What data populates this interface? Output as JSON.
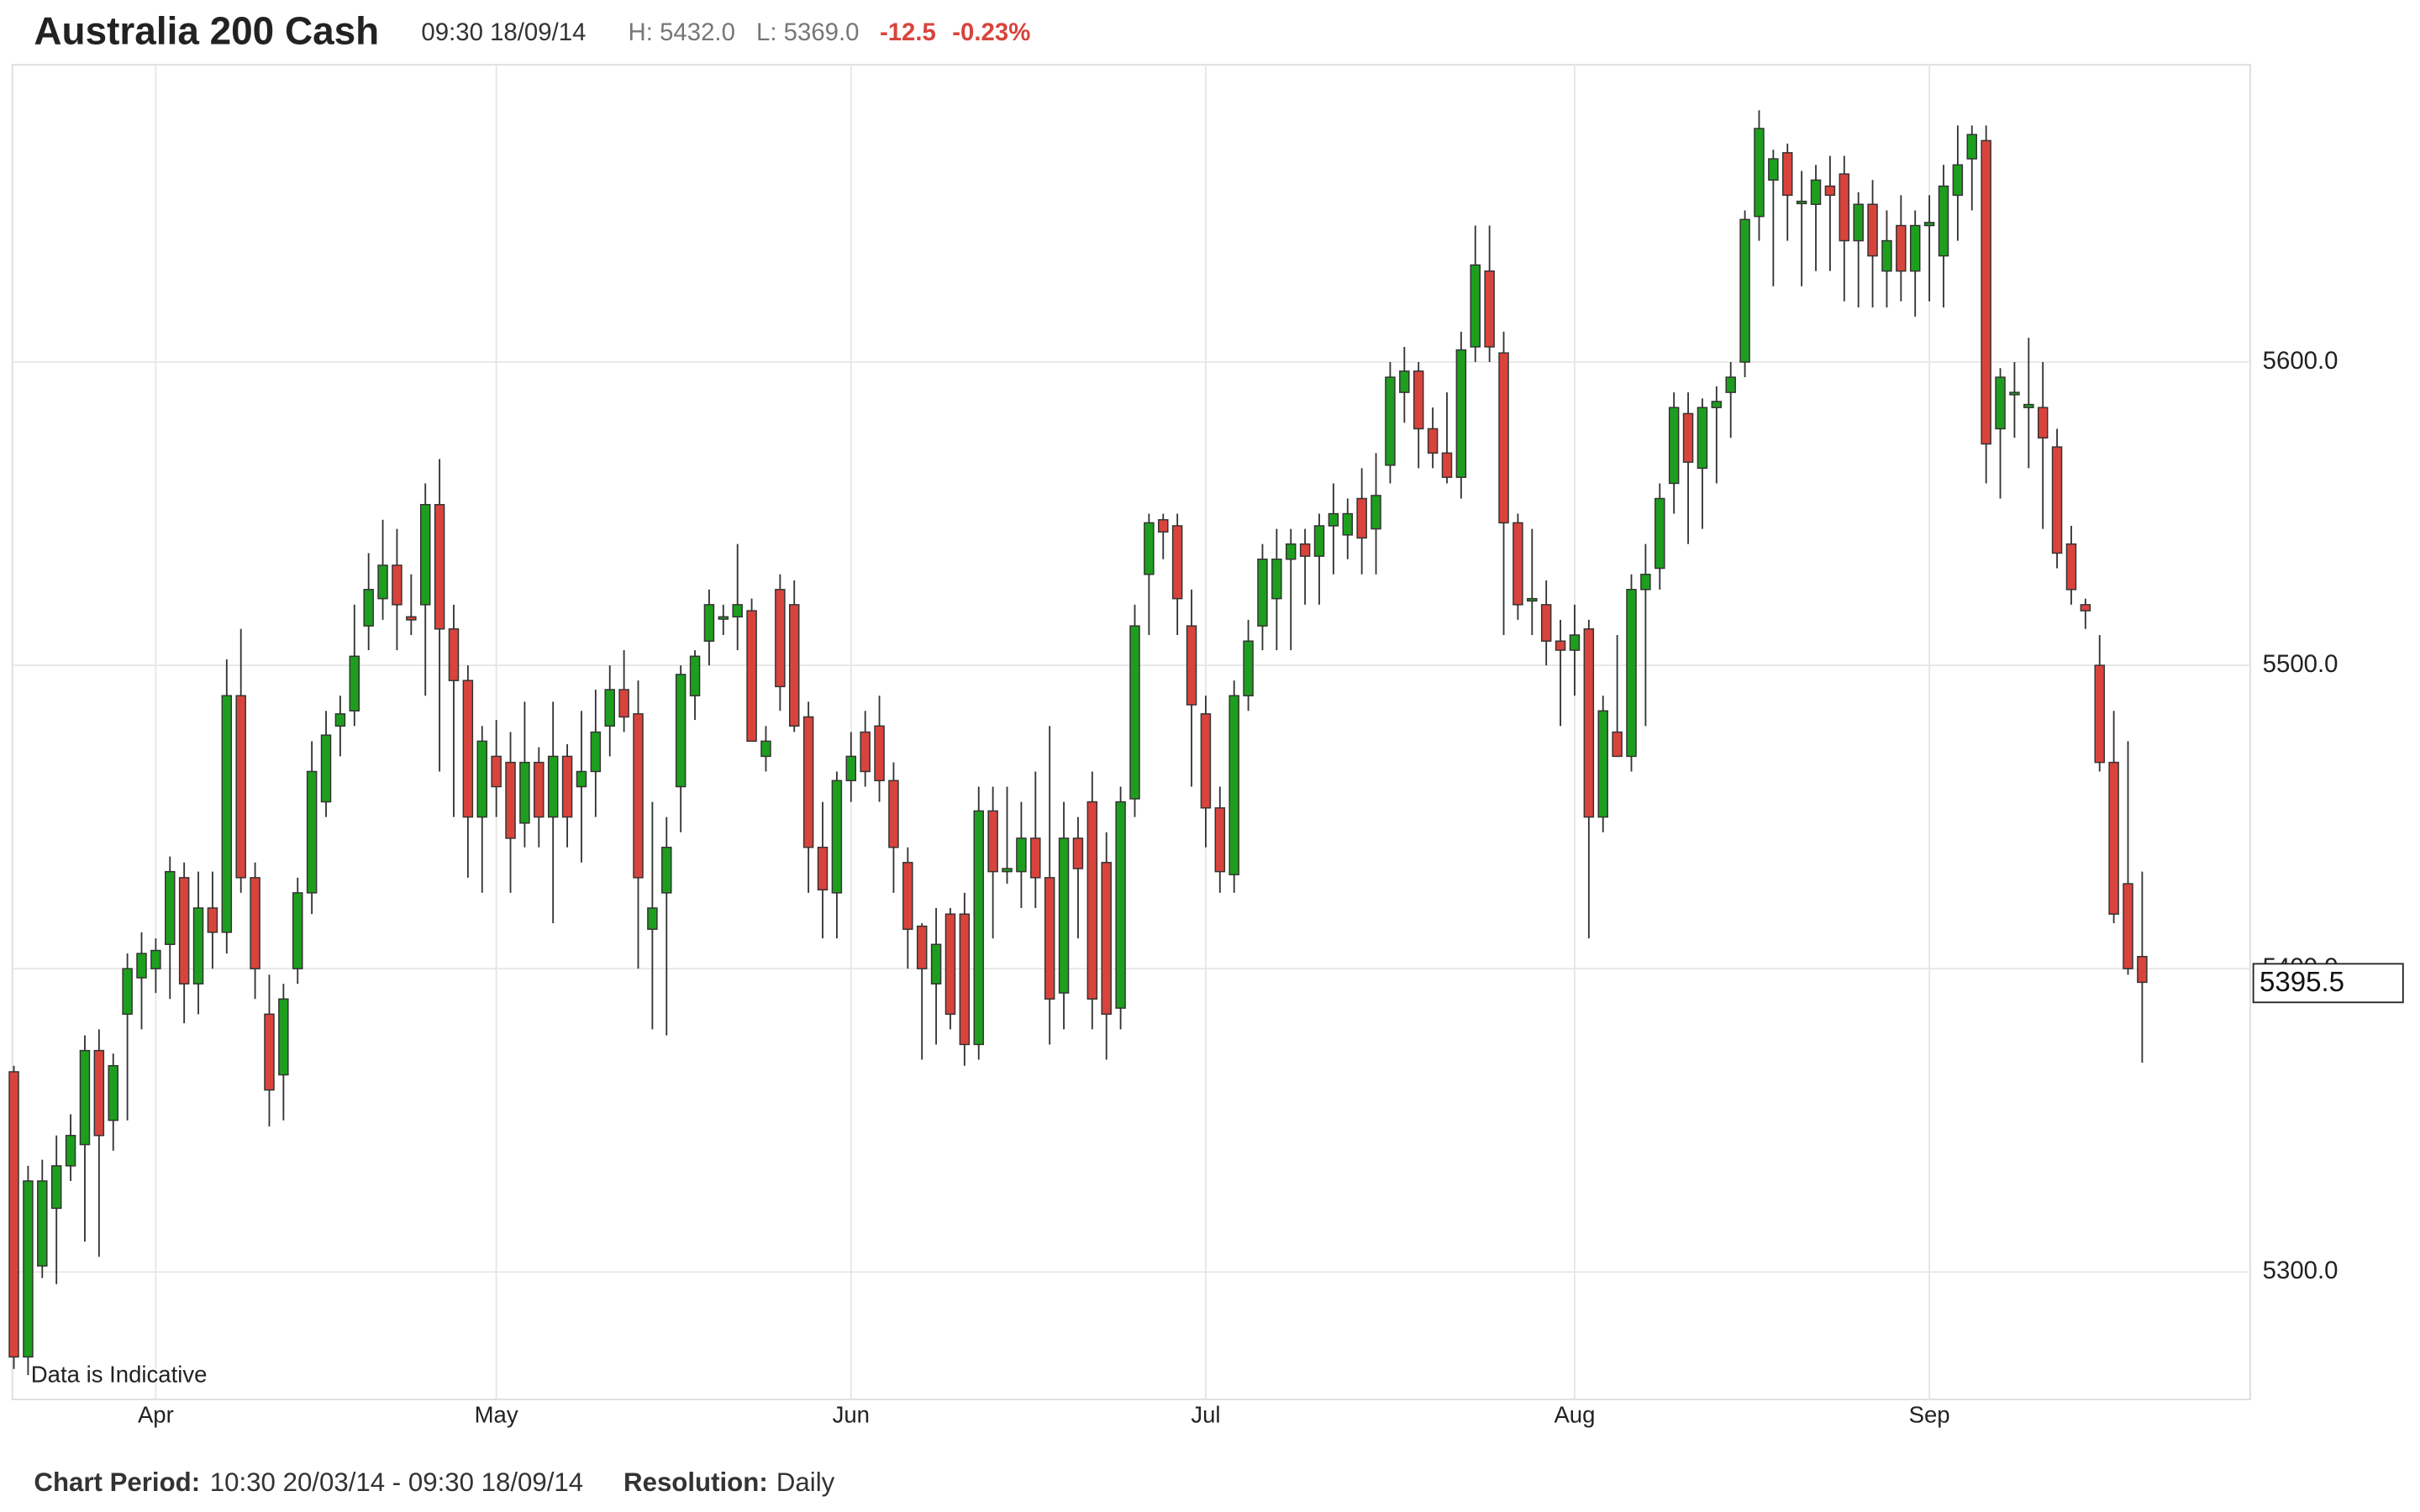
{
  "header": {
    "title": "Australia 200 Cash",
    "time": "09:30 18/09/14",
    "high": "H: 5432.0",
    "low": "L: 5369.0",
    "change": "-12.5",
    "change_pct": "-0.23%"
  },
  "footer": {
    "period_label": "Chart Period:",
    "period": "10:30 20/03/14 - 09:30 18/09/14",
    "resolution_label": "Resolution:",
    "resolution": "Daily"
  },
  "chart_data": {
    "type": "candlestick",
    "note": "Data is Indicative",
    "up_color": "#1e9e1e",
    "down_color": "#d8443c",
    "grid": true,
    "ylim": [
      5258,
      5698
    ],
    "yticks": [
      {
        "value": 5300,
        "label": "5300.0"
      },
      {
        "value": 5400,
        "label": "5400.0"
      },
      {
        "value": 5500,
        "label": "5500.0"
      },
      {
        "value": 5600,
        "label": "5600.0"
      }
    ],
    "last_price": 5395.5,
    "categories": [
      null,
      null,
      null,
      null,
      null,
      null,
      null,
      null,
      null,
      null,
      "Apr",
      null,
      null,
      null,
      null,
      null,
      null,
      null,
      null,
      null,
      null,
      null,
      null,
      null,
      null,
      null,
      null,
      null,
      null,
      null,
      null,
      null,
      null,
      null,
      "May",
      null,
      null,
      null,
      null,
      null,
      null,
      null,
      null,
      null,
      null,
      null,
      null,
      null,
      null,
      null,
      null,
      null,
      null,
      null,
      null,
      null,
      null,
      null,
      null,
      "Jun",
      null,
      null,
      null,
      null,
      null,
      null,
      null,
      null,
      null,
      null,
      null,
      null,
      null,
      null,
      null,
      null,
      null,
      null,
      null,
      null,
      null,
      null,
      null,
      null,
      "Jul",
      null,
      null,
      null,
      null,
      null,
      null,
      null,
      null,
      null,
      null,
      null,
      null,
      null,
      null,
      null,
      null,
      null,
      null,
      null,
      null,
      null,
      null,
      null,
      null,
      null,
      "Aug",
      null,
      null,
      null,
      null,
      null,
      null,
      null,
      null,
      null,
      null,
      null,
      null,
      null,
      null,
      null,
      null,
      null,
      null,
      null,
      null,
      null,
      null,
      null,
      null,
      "Sep",
      null,
      null,
      null,
      null,
      null,
      null,
      null,
      null,
      null,
      null,
      null,
      null,
      null,
      null,
      null
    ],
    "candles": [
      [
        5366,
        5368,
        5268,
        5272
      ],
      [
        5272,
        5335,
        5266,
        5330
      ],
      [
        5302,
        5337,
        5298,
        5330
      ],
      [
        5321,
        5345,
        5296,
        5335
      ],
      [
        5335,
        5352,
        5330,
        5345
      ],
      [
        5342,
        5378,
        5310,
        5373
      ],
      [
        5373,
        5380,
        5305,
        5345
      ],
      [
        5350,
        5372,
        5340,
        5368
      ],
      [
        5385,
        5405,
        5350,
        5400
      ],
      [
        5397,
        5412,
        5380,
        5405
      ],
      [
        5400,
        5410,
        5392,
        5406
      ],
      [
        5408,
        5437,
        5390,
        5432
      ],
      [
        5430,
        5435,
        5382,
        5395
      ],
      [
        5395,
        5432,
        5385,
        5420
      ],
      [
        5420,
        5432,
        5400,
        5412
      ],
      [
        5412,
        5502,
        5405,
        5490
      ],
      [
        5490,
        5512,
        5425,
        5430
      ],
      [
        5430,
        5435,
        5390,
        5400
      ],
      [
        5385,
        5398,
        5348,
        5360
      ],
      [
        5365,
        5395,
        5350,
        5390
      ],
      [
        5400,
        5430,
        5395,
        5425
      ],
      [
        5425,
        5475,
        5418,
        5465
      ],
      [
        5455,
        5485,
        5450,
        5477
      ],
      [
        5480,
        5490,
        5470,
        5484
      ],
      [
        5485,
        5520,
        5480,
        5503
      ],
      [
        5513,
        5537,
        5505,
        5525
      ],
      [
        5522,
        5548,
        5515,
        5533
      ],
      [
        5533,
        5545,
        5505,
        5520
      ],
      [
        5516,
        5530,
        5510,
        5515
      ],
      [
        5520,
        5560,
        5490,
        5553
      ],
      [
        5553,
        5568,
        5465,
        5512
      ],
      [
        5512,
        5520,
        5450,
        5495
      ],
      [
        5495,
        5500,
        5430,
        5450
      ],
      [
        5450,
        5480,
        5425,
        5475
      ],
      [
        5470,
        5482,
        5450,
        5460
      ],
      [
        5468,
        5478,
        5425,
        5443
      ],
      [
        5448,
        5488,
        5440,
        5468
      ],
      [
        5468,
        5473,
        5440,
        5450
      ],
      [
        5450,
        5488,
        5415,
        5470
      ],
      [
        5470,
        5474,
        5440,
        5450
      ],
      [
        5460,
        5485,
        5435,
        5465
      ],
      [
        5465,
        5492,
        5450,
        5478
      ],
      [
        5480,
        5500,
        5470,
        5492
      ],
      [
        5492,
        5505,
        5478,
        5483
      ],
      [
        5484,
        5495,
        5400,
        5430
      ],
      [
        5413,
        5455,
        5380,
        5420
      ],
      [
        5425,
        5450,
        5378,
        5440
      ],
      [
        5460,
        5500,
        5445,
        5497
      ],
      [
        5490,
        5505,
        5482,
        5503
      ],
      [
        5508,
        5525,
        5500,
        5520
      ],
      [
        5516,
        5520,
        5510,
        5516
      ],
      [
        5516,
        5540,
        5505,
        5520
      ],
      [
        5518,
        5522,
        5475,
        5475
      ],
      [
        5470,
        5480,
        5465,
        5475
      ],
      [
        5525,
        5530,
        5485,
        5493
      ],
      [
        5520,
        5528,
        5478,
        5480
      ],
      [
        5483,
        5488,
        5425,
        5440
      ],
      [
        5440,
        5455,
        5410,
        5426
      ],
      [
        5425,
        5465,
        5410,
        5462
      ],
      [
        5462,
        5478,
        5455,
        5470
      ],
      [
        5478,
        5485,
        5460,
        5465
      ],
      [
        5480,
        5490,
        5455,
        5462
      ],
      [
        5462,
        5468,
        5425,
        5440
      ],
      [
        5435,
        5440,
        5400,
        5413
      ],
      [
        5414,
        5415,
        5370,
        5400
      ],
      [
        5395,
        5420,
        5375,
        5408
      ],
      [
        5418,
        5420,
        5380,
        5385
      ],
      [
        5418,
        5425,
        5368,
        5375
      ],
      [
        5375,
        5460,
        5370,
        5452
      ],
      [
        5452,
        5460,
        5410,
        5432
      ],
      [
        5432,
        5460,
        5428,
        5433
      ],
      [
        5432,
        5455,
        5420,
        5443
      ],
      [
        5443,
        5465,
        5420,
        5430
      ],
      [
        5430,
        5480,
        5375,
        5390
      ],
      [
        5392,
        5455,
        5380,
        5443
      ],
      [
        5443,
        5450,
        5410,
        5433
      ],
      [
        5455,
        5465,
        5380,
        5390
      ],
      [
        5435,
        5445,
        5370,
        5385
      ],
      [
        5387,
        5460,
        5380,
        5455
      ],
      [
        5456,
        5520,
        5450,
        5513
      ],
      [
        5530,
        5550,
        5510,
        5547
      ],
      [
        5548,
        5550,
        5535,
        5544
      ],
      [
        5546,
        5550,
        5510,
        5522
      ],
      [
        5513,
        5525,
        5460,
        5487
      ],
      [
        5484,
        5490,
        5440,
        5453
      ],
      [
        5453,
        5460,
        5425,
        5432
      ],
      [
        5431,
        5495,
        5425,
        5490
      ],
      [
        5490,
        5515,
        5485,
        5508
      ],
      [
        5513,
        5540,
        5505,
        5535
      ],
      [
        5522,
        5545,
        5505,
        5535
      ],
      [
        5535,
        5545,
        5505,
        5540
      ],
      [
        5540,
        5545,
        5520,
        5536
      ],
      [
        5536,
        5550,
        5520,
        5546
      ],
      [
        5546,
        5560,
        5530,
        5550
      ],
      [
        5543,
        5555,
        5535,
        5550
      ],
      [
        5555,
        5565,
        5530,
        5542
      ],
      [
        5545,
        5570,
        5530,
        5556
      ],
      [
        5566,
        5600,
        5560,
        5595
      ],
      [
        5590,
        5605,
        5580,
        5597
      ],
      [
        5597,
        5600,
        5565,
        5578
      ],
      [
        5578,
        5585,
        5565,
        5570
      ],
      [
        5570,
        5590,
        5560,
        5562
      ],
      [
        5562,
        5610,
        5555,
        5604
      ],
      [
        5605,
        5645,
        5600,
        5632
      ],
      [
        5630,
        5645,
        5600,
        5605
      ],
      [
        5603,
        5610,
        5510,
        5547
      ],
      [
        5547,
        5550,
        5515,
        5520
      ],
      [
        5522,
        5545,
        5510,
        5522
      ],
      [
        5520,
        5528,
        5500,
        5508
      ],
      [
        5508,
        5515,
        5480,
        5505
      ],
      [
        5505,
        5520,
        5490,
        5510
      ],
      [
        5512,
        5515,
        5410,
        5450
      ],
      [
        5450,
        5490,
        5445,
        5485
      ],
      [
        5478,
        5510,
        5470,
        5470
      ],
      [
        5470,
        5530,
        5465,
        5525
      ],
      [
        5525,
        5540,
        5480,
        5530
      ],
      [
        5532,
        5560,
        5525,
        5555
      ],
      [
        5560,
        5590,
        5550,
        5585
      ],
      [
        5583,
        5590,
        5540,
        5567
      ],
      [
        5565,
        5588,
        5545,
        5585
      ],
      [
        5585,
        5592,
        5560,
        5587
      ],
      [
        5590,
        5600,
        5575,
        5595
      ],
      [
        5600,
        5650,
        5595,
        5647
      ],
      [
        5648,
        5683,
        5640,
        5677
      ],
      [
        5660,
        5670,
        5625,
        5667
      ],
      [
        5669,
        5672,
        5640,
        5655
      ],
      [
        5653,
        5663,
        5625,
        5653
      ],
      [
        5652,
        5665,
        5630,
        5660
      ],
      [
        5658,
        5668,
        5630,
        5655
      ],
      [
        5662,
        5668,
        5620,
        5640
      ],
      [
        5640,
        5656,
        5618,
        5652
      ],
      [
        5652,
        5660,
        5618,
        5635
      ],
      [
        5630,
        5650,
        5618,
        5640
      ],
      [
        5645,
        5655,
        5620,
        5630
      ],
      [
        5630,
        5650,
        5615,
        5645
      ],
      [
        5645,
        5655,
        5620,
        5646
      ],
      [
        5635,
        5665,
        5618,
        5658
      ],
      [
        5655,
        5678,
        5640,
        5665
      ],
      [
        5667,
        5678,
        5650,
        5675
      ],
      [
        5673,
        5678,
        5560,
        5573
      ],
      [
        5578,
        5598,
        5555,
        5595
      ],
      [
        5590,
        5600,
        5575,
        5590
      ],
      [
        5585,
        5608,
        5565,
        5586
      ],
      [
        5585,
        5600,
        5545,
        5575
      ],
      [
        5572,
        5578,
        5532,
        5537
      ],
      [
        5540,
        5546,
        5520,
        5525
      ],
      [
        5520,
        5522,
        5512,
        5518
      ],
      [
        5500,
        5510,
        5465,
        5468
      ],
      [
        5468,
        5485,
        5415,
        5418
      ],
      [
        5428,
        5475,
        5398,
        5400
      ],
      [
        5404,
        5432,
        5369,
        5395.5
      ]
    ]
  }
}
